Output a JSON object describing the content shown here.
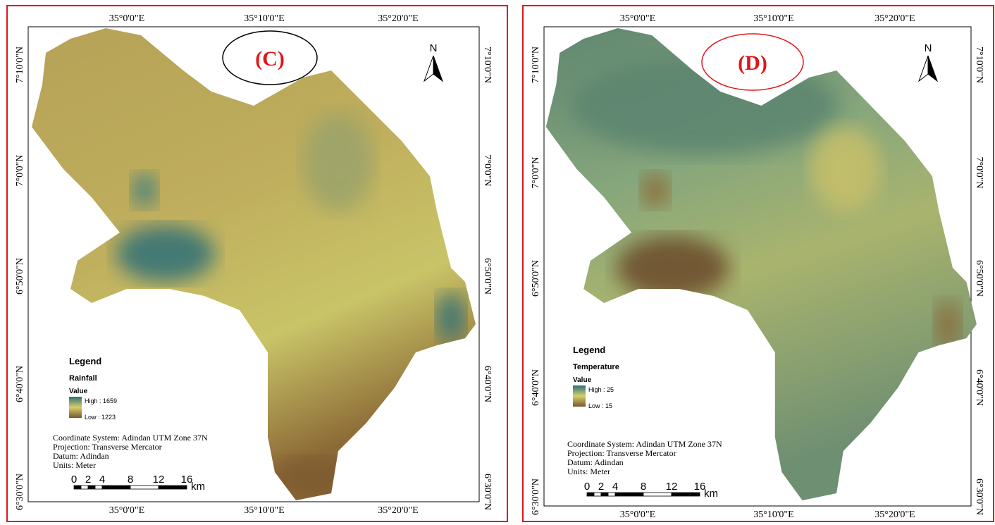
{
  "panels": [
    {
      "label": "(C)",
      "north": "N",
      "top_ticks": [
        "35°0'0\"E",
        "35°10'0\"E",
        "35°20'0\"E"
      ],
      "bottom_ticks": [
        "35°0'0\"E",
        "35°10'0\"E",
        "35°20'0\"E"
      ],
      "left_ticks": [
        "7°10'0\"N",
        "7°0'0\"N",
        "6°50'0\"N",
        "6°40'0\"N",
        "6°30'0\"N"
      ],
      "right_ticks": [
        "7°10'0\"N",
        "7°0'0\"N",
        "6°50'0\"N",
        "6°40'0\"N",
        "6°30'0\"N"
      ],
      "legend": {
        "title": "Legend",
        "layer": "Rainfall",
        "field": "Value",
        "high": "High : 1659",
        "low": "Low : 1223"
      },
      "info": [
        "Coordinate System: Adindan UTM Zone 37N",
        "Projection: Transverse Mercator",
        "Datum: Adindan",
        "Units: Meter"
      ],
      "scale_labels": [
        "0",
        "2",
        "4",
        "8",
        "12",
        "16"
      ],
      "scale_unit": "km"
    },
    {
      "label": "(D)",
      "north": "N",
      "top_ticks": [
        "35°0'0\"E",
        "35°10'0\"E",
        "35°20'0\"E"
      ],
      "bottom_ticks": [
        "35°0'0\"E",
        "35°10'0\"E",
        "35°20'0\"E"
      ],
      "left_ticks": [
        "7°10'0\"N",
        "7°0'0\"N",
        "6°50'0\"N",
        "6°40'0\"N",
        "6°30'0\"N"
      ],
      "right_ticks": [
        "7°10'0\"N",
        "7°0'0\"N",
        "6°50'0\"N",
        "6°40'0\"N",
        "6°30'0\"N"
      ],
      "legend": {
        "title": "Legend",
        "layer": "Temperature",
        "field": "Value",
        "high": "High : 25",
        "low": "Low : 15"
      },
      "info": [
        "Coordinate System: Adindan UTM Zone 37N",
        "Projection: Transverse Mercator",
        "Datum: Adindan",
        "Units: Meter"
      ],
      "scale_labels": [
        "0",
        "2",
        "4",
        "8",
        "12",
        "16"
      ],
      "scale_unit": "km"
    }
  ]
}
